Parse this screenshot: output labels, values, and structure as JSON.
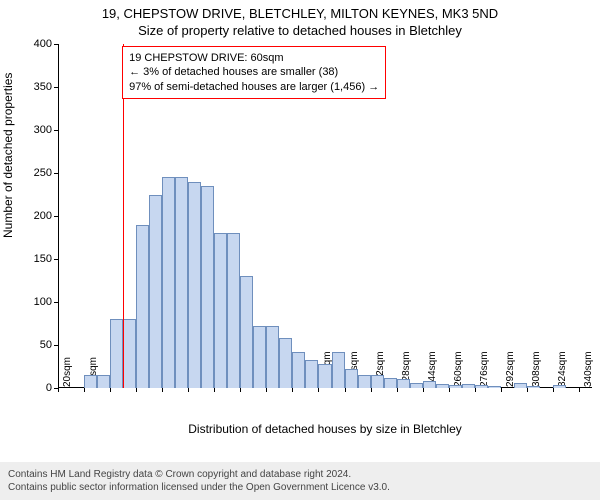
{
  "title": "19, CHEPSTOW DRIVE, BLETCHLEY, MILTON KEYNES, MK3 5ND",
  "subtitle": "Size of property relative to detached houses in Bletchley",
  "y_axis_label": "Number of detached properties",
  "x_axis_label": "Distribution of detached houses by size in Bletchley",
  "chart": {
    "type": "histogram",
    "background_color": "#ffffff",
    "bar_fill": "#c7d7f0",
    "bar_stroke": "#6f8fbd",
    "text_color": "#000000",
    "axis_color": "#000000",
    "y_tick_fontsize": 11,
    "x_tick_fontsize": 10,
    "label_fontsize": 12,
    "title_fontsize": 13,
    "xlim_min": 20,
    "xlim_max": 348,
    "ylim_min": 0,
    "ylim_max": 400,
    "y_ticks": [
      0,
      50,
      100,
      150,
      200,
      250,
      300,
      350,
      400
    ],
    "x_tick_step": 16,
    "x_tick_start": 20,
    "x_tick_count": 21,
    "x_tick_suffix": "sqm",
    "bin_width": 8,
    "bins": [
      {
        "start": 36,
        "count": 15
      },
      {
        "start": 44,
        "count": 15
      },
      {
        "start": 52,
        "count": 80
      },
      {
        "start": 60,
        "count": 80
      },
      {
        "start": 68,
        "count": 190
      },
      {
        "start": 76,
        "count": 225
      },
      {
        "start": 84,
        "count": 245
      },
      {
        "start": 92,
        "count": 245
      },
      {
        "start": 100,
        "count": 240
      },
      {
        "start": 108,
        "count": 235
      },
      {
        "start": 116,
        "count": 180
      },
      {
        "start": 124,
        "count": 180
      },
      {
        "start": 132,
        "count": 130
      },
      {
        "start": 140,
        "count": 72
      },
      {
        "start": 148,
        "count": 72
      },
      {
        "start": 156,
        "count": 58
      },
      {
        "start": 164,
        "count": 42
      },
      {
        "start": 172,
        "count": 32
      },
      {
        "start": 180,
        "count": 28
      },
      {
        "start": 188,
        "count": 42
      },
      {
        "start": 196,
        "count": 22
      },
      {
        "start": 204,
        "count": 15
      },
      {
        "start": 212,
        "count": 15
      },
      {
        "start": 220,
        "count": 12
      },
      {
        "start": 228,
        "count": 10
      },
      {
        "start": 236,
        "count": 6
      },
      {
        "start": 244,
        "count": 8
      },
      {
        "start": 252,
        "count": 5
      },
      {
        "start": 260,
        "count": 3
      },
      {
        "start": 268,
        "count": 5
      },
      {
        "start": 276,
        "count": 3
      },
      {
        "start": 284,
        "count": 2
      },
      {
        "start": 300,
        "count": 6
      },
      {
        "start": 308,
        "count": 2
      },
      {
        "start": 324,
        "count": 3
      }
    ],
    "marker": {
      "x_value": 60,
      "color": "#ff0000",
      "info_border": "#ff0000",
      "info_lines": [
        "19 CHEPSTOW DRIVE: 60sqm",
        "← 3% of detached houses are smaller (38)",
        "97% of semi-detached houses are larger (1,456) →"
      ]
    }
  },
  "footer": {
    "line1": "Contains HM Land Registry data © Crown copyright and database right 2024.",
    "line2": "Contains public sector information licensed under the Open Government Licence v3.0.",
    "bg_color": "#eeeeee",
    "text_color": "#444444",
    "fontsize": 10
  }
}
